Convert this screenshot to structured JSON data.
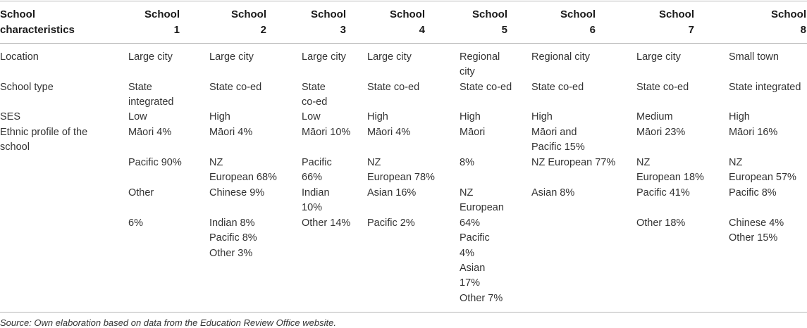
{
  "table": {
    "headers": [
      [
        "School",
        "characteristics"
      ],
      [
        "School",
        "1"
      ],
      [
        "School",
        "2"
      ],
      [
        "School",
        "3"
      ],
      [
        "School",
        "4"
      ],
      [
        "School",
        "5"
      ],
      [
        "School",
        "6"
      ],
      [
        "School",
        "7"
      ],
      [
        "School",
        "8"
      ]
    ],
    "row_labels": {
      "location": "Location",
      "school_type": "School type",
      "ses": "SES",
      "ethnic": [
        "Ethnic profile of the",
        "school"
      ]
    },
    "location": [
      [
        "Large city"
      ],
      [
        "Large city"
      ],
      [
        "Large city"
      ],
      [
        "Large city"
      ],
      [
        "Regional",
        "city"
      ],
      [
        "Regional city"
      ],
      [
        "Large city"
      ],
      [
        "Small town"
      ]
    ],
    "school_type": [
      [
        "State",
        "integrated"
      ],
      [
        "State co-ed"
      ],
      [
        "State",
        "co-ed"
      ],
      [
        "State co-ed"
      ],
      [
        "State co-ed"
      ],
      [
        "State co-ed"
      ],
      [
        "State co-ed"
      ],
      [
        "State integrated"
      ]
    ],
    "ses": [
      "Low",
      "High",
      "Low",
      "High",
      "High",
      "High",
      "Medium",
      "High"
    ],
    "ethnic": [
      [
        [
          "Māori 4%"
        ],
        [
          "Pacific 90%"
        ],
        [
          "Other"
        ],
        [
          "6%"
        ]
      ],
      [
        [
          "Māori 4%"
        ],
        [
          "NZ",
          "European 68%",
          "Chinese 9%"
        ],
        [
          "Indian 8%",
          "Pacific 8%",
          "Other 3%"
        ]
      ],
      [
        [
          "Māori 10%"
        ],
        [
          "Pacific",
          "66%",
          "Indian",
          "10%",
          "Other 14%"
        ]
      ],
      [
        [
          "Māori 4%"
        ],
        [
          "NZ",
          "European 78%",
          "Asian 16%"
        ],
        [
          "Pacific 2%"
        ]
      ],
      [
        [
          "Māori"
        ],
        [
          "8%"
        ],
        [
          "NZ",
          "European",
          "64%",
          "Pacific",
          "4%",
          "Asian",
          "17%",
          "Other 7%"
        ]
      ],
      [
        [
          "Māori and",
          "Pacific 15%",
          "NZ European 77%"
        ],
        [
          "Asian 8%"
        ]
      ],
      [
        [
          "Māori 23%"
        ],
        [
          "NZ",
          "European 18%",
          "Pacific 41%"
        ],
        [
          "Other 18%"
        ]
      ],
      [
        [
          "Māori 16%"
        ],
        [
          "NZ",
          "European 57%",
          "Pacific 8%"
        ],
        [
          "Chinese 4%",
          "Other 15%"
        ]
      ]
    ]
  },
  "source_note": "Source: Own elaboration based on data from the Education Review Office website."
}
